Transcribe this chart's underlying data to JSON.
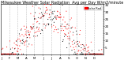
{
  "title": "Milwaukee Weather Solar Radiation  Avg per Day W/m2/minute",
  "title_fontsize": 3.5,
  "background_color": "#ffffff",
  "plot_bg_color": "#ffffff",
  "grid_color": "#c0c0c0",
  "legend_label": "Solar Rad",
  "legend_color": "#ff0000",
  "dot_color_red": "#ff0000",
  "dot_color_black": "#000000",
  "ylabel_fontsize": 3.0,
  "xlabel_fontsize": 2.8,
  "ylim_min": 0,
  "ylim_max": 35,
  "yticks": [
    5,
    10,
    15,
    20,
    25,
    30,
    35
  ],
  "num_points": 365,
  "vgrid_positions": [
    31,
    59,
    90,
    120,
    151,
    181,
    212,
    243,
    273,
    304,
    334,
    365
  ],
  "x_tick_positions": [
    1,
    31,
    59,
    90,
    120,
    151,
    181,
    212,
    243,
    273,
    304,
    334
  ],
  "x_tick_labels": [
    "J",
    "F",
    "M",
    "A",
    "M",
    "J",
    "J",
    "A",
    "S",
    "O",
    "N",
    "D"
  ]
}
